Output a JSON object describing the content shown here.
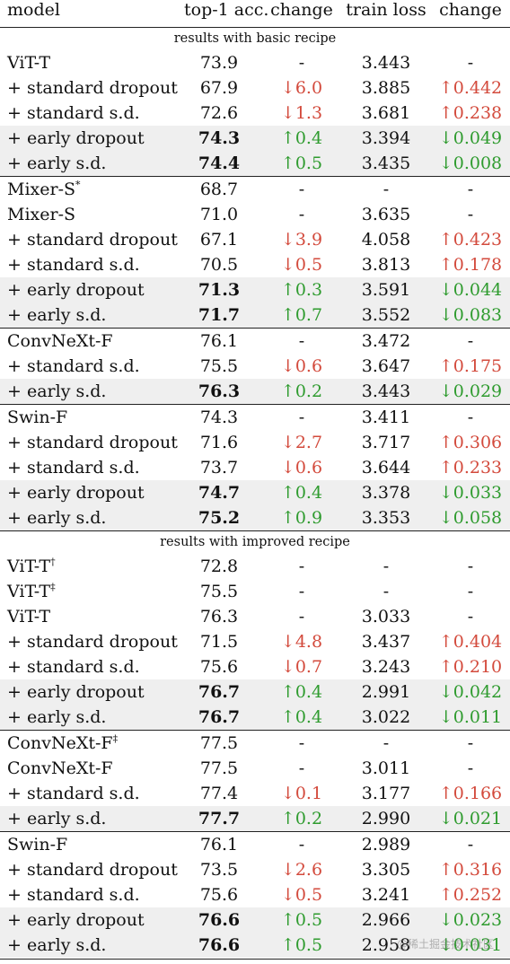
{
  "header": {
    "model": "model",
    "top1": "top-1 acc.",
    "change": "change",
    "train_loss": "train loss",
    "change2": "change"
  },
  "sections": [
    {
      "title": "results with basic recipe",
      "groups": [
        {
          "rows": [
            {
              "model": "ViT-T",
              "sup": "",
              "acc": "73.9",
              "bold": false,
              "dacc": "-",
              "dacc_dir": "",
              "loss": "3.443",
              "dloss": "-",
              "dloss_dir": "",
              "shaded": false
            },
            {
              "model": "+ standard dropout",
              "sup": "",
              "acc": "67.9",
              "bold": false,
              "dacc": "6.0",
              "dacc_dir": "down",
              "loss": "3.885",
              "dloss": "0.442",
              "dloss_dir": "up",
              "shaded": false
            },
            {
              "model": "+ standard s.d.",
              "sup": "",
              "acc": "72.6",
              "bold": false,
              "dacc": "1.3",
              "dacc_dir": "down",
              "loss": "3.681",
              "dloss": "0.238",
              "dloss_dir": "up",
              "shaded": false
            },
            {
              "model": "+ early dropout",
              "sup": "",
              "acc": "74.3",
              "bold": true,
              "dacc": "0.4",
              "dacc_dir": "up",
              "loss": "3.394",
              "dloss": "0.049",
              "dloss_dir": "down",
              "shaded": true
            },
            {
              "model": "+ early s.d.",
              "sup": "",
              "acc": "74.4",
              "bold": true,
              "dacc": "0.5",
              "dacc_dir": "up",
              "loss": "3.435",
              "dloss": "0.008",
              "dloss_dir": "down",
              "shaded": true
            }
          ]
        },
        {
          "rows": [
            {
              "model": "Mixer-S",
              "sup": "*",
              "acc": "68.7",
              "bold": false,
              "dacc": "-",
              "dacc_dir": "",
              "loss": "-",
              "dloss": "-",
              "dloss_dir": "",
              "shaded": false
            },
            {
              "model": "Mixer-S",
              "sup": "",
              "acc": "71.0",
              "bold": false,
              "dacc": "-",
              "dacc_dir": "",
              "loss": "3.635",
              "dloss": "-",
              "dloss_dir": "",
              "shaded": false
            },
            {
              "model": "+ standard dropout",
              "sup": "",
              "acc": "67.1",
              "bold": false,
              "dacc": "3.9",
              "dacc_dir": "down",
              "loss": "4.058",
              "dloss": "0.423",
              "dloss_dir": "up",
              "shaded": false
            },
            {
              "model": "+ standard s.d.",
              "sup": "",
              "acc": "70.5",
              "bold": false,
              "dacc": "0.5",
              "dacc_dir": "down",
              "loss": "3.813",
              "dloss": "0.178",
              "dloss_dir": "up",
              "shaded": false
            },
            {
              "model": "+ early dropout",
              "sup": "",
              "acc": "71.3",
              "bold": true,
              "dacc": "0.3",
              "dacc_dir": "up",
              "loss": "3.591",
              "dloss": "0.044",
              "dloss_dir": "down",
              "shaded": true
            },
            {
              "model": "+ early s.d.",
              "sup": "",
              "acc": "71.7",
              "bold": true,
              "dacc": "0.7",
              "dacc_dir": "up",
              "loss": "3.552",
              "dloss": "0.083",
              "dloss_dir": "down",
              "shaded": true
            }
          ]
        },
        {
          "rows": [
            {
              "model": "ConvNeXt-F",
              "sup": "",
              "acc": "76.1",
              "bold": false,
              "dacc": "-",
              "dacc_dir": "",
              "loss": "3.472",
              "dloss": "-",
              "dloss_dir": "",
              "shaded": false
            },
            {
              "model": "+ standard s.d.",
              "sup": "",
              "acc": "75.5",
              "bold": false,
              "dacc": "0.6",
              "dacc_dir": "down",
              "loss": "3.647",
              "dloss": "0.175",
              "dloss_dir": "up",
              "shaded": false
            },
            {
              "model": "+ early s.d.",
              "sup": "",
              "acc": "76.3",
              "bold": true,
              "dacc": "0.2",
              "dacc_dir": "up",
              "loss": "3.443",
              "dloss": "0.029",
              "dloss_dir": "down",
              "shaded": true
            }
          ]
        },
        {
          "rows": [
            {
              "model": "Swin-F",
              "sup": "",
              "acc": "74.3",
              "bold": false,
              "dacc": "-",
              "dacc_dir": "",
              "loss": "3.411",
              "dloss": "-",
              "dloss_dir": "",
              "shaded": false
            },
            {
              "model": "+ standard dropout",
              "sup": "",
              "acc": "71.6",
              "bold": false,
              "dacc": "2.7",
              "dacc_dir": "down",
              "loss": "3.717",
              "dloss": "0.306",
              "dloss_dir": "up",
              "shaded": false
            },
            {
              "model": "+ standard s.d.",
              "sup": "",
              "acc": "73.7",
              "bold": false,
              "dacc": "0.6",
              "dacc_dir": "down",
              "loss": "3.644",
              "dloss": "0.233",
              "dloss_dir": "up",
              "shaded": false
            },
            {
              "model": "+ early dropout",
              "sup": "",
              "acc": "74.7",
              "bold": true,
              "dacc": "0.4",
              "dacc_dir": "up",
              "loss": "3.378",
              "dloss": "0.033",
              "dloss_dir": "down",
              "shaded": true
            },
            {
              "model": "+ early s.d.",
              "sup": "",
              "acc": "75.2",
              "bold": true,
              "dacc": "0.9",
              "dacc_dir": "up",
              "loss": "3.353",
              "dloss": "0.058",
              "dloss_dir": "down",
              "shaded": true
            }
          ]
        }
      ]
    },
    {
      "title": "results with improved recipe",
      "groups": [
        {
          "rows": [
            {
              "model": "ViT-T",
              "sup": "†",
              "acc": "72.8",
              "bold": false,
              "dacc": "-",
              "dacc_dir": "",
              "loss": "-",
              "dloss": "-",
              "dloss_dir": "",
              "shaded": false
            },
            {
              "model": "ViT-T",
              "sup": "‡",
              "acc": "75.5",
              "bold": false,
              "dacc": "-",
              "dacc_dir": "",
              "loss": "-",
              "dloss": "-",
              "dloss_dir": "",
              "shaded": false
            },
            {
              "model": "ViT-T",
              "sup": "",
              "acc": "76.3",
              "bold": false,
              "dacc": "-",
              "dacc_dir": "",
              "loss": "3.033",
              "dloss": "-",
              "dloss_dir": "",
              "shaded": false
            },
            {
              "model": "+ standard dropout",
              "sup": "",
              "acc": "71.5",
              "bold": false,
              "dacc": "4.8",
              "dacc_dir": "down",
              "loss": "3.437",
              "dloss": "0.404",
              "dloss_dir": "up",
              "shaded": false
            },
            {
              "model": "+ standard s.d.",
              "sup": "",
              "acc": "75.6",
              "bold": false,
              "dacc": "0.7",
              "dacc_dir": "down",
              "loss": "3.243",
              "dloss": "0.210",
              "dloss_dir": "up",
              "shaded": false
            },
            {
              "model": "+ early dropout",
              "sup": "",
              "acc": "76.7",
              "bold": true,
              "dacc": "0.4",
              "dacc_dir": "up",
              "loss": "2.991",
              "dloss": "0.042",
              "dloss_dir": "down",
              "shaded": true
            },
            {
              "model": "+ early s.d.",
              "sup": "",
              "acc": "76.7",
              "bold": true,
              "dacc": "0.4",
              "dacc_dir": "up",
              "loss": "3.022",
              "dloss": "0.011",
              "dloss_dir": "down",
              "shaded": true
            }
          ]
        },
        {
          "rows": [
            {
              "model": "ConvNeXt-F",
              "sup": "‡",
              "acc": "77.5",
              "bold": false,
              "dacc": "-",
              "dacc_dir": "",
              "loss": "-",
              "dloss": "-",
              "dloss_dir": "",
              "shaded": false
            },
            {
              "model": "ConvNeXt-F",
              "sup": "",
              "acc": "77.5",
              "bold": false,
              "dacc": "-",
              "dacc_dir": "",
              "loss": "3.011",
              "dloss": "-",
              "dloss_dir": "",
              "shaded": false
            },
            {
              "model": "+ standard s.d.",
              "sup": "",
              "acc": "77.4",
              "bold": false,
              "dacc": "0.1",
              "dacc_dir": "down",
              "loss": "3.177",
              "dloss": "0.166",
              "dloss_dir": "up",
              "shaded": false
            },
            {
              "model": "+ early s.d.",
              "sup": "",
              "acc": "77.7",
              "bold": true,
              "dacc": "0.2",
              "dacc_dir": "up",
              "loss": "2.990",
              "dloss": "0.021",
              "dloss_dir": "down",
              "shaded": true
            }
          ]
        },
        {
          "rows": [
            {
              "model": "Swin-F",
              "sup": "",
              "acc": "76.1",
              "bold": false,
              "dacc": "-",
              "dacc_dir": "",
              "loss": "2.989",
              "dloss": "-",
              "dloss_dir": "",
              "shaded": false
            },
            {
              "model": "+ standard dropout",
              "sup": "",
              "acc": "73.5",
              "bold": false,
              "dacc": "2.6",
              "dacc_dir": "down",
              "loss": "3.305",
              "dloss": "0.316",
              "dloss_dir": "up",
              "shaded": false
            },
            {
              "model": "+ standard s.d.",
              "sup": "",
              "acc": "75.6",
              "bold": false,
              "dacc": "0.5",
              "dacc_dir": "down",
              "loss": "3.241",
              "dloss": "0.252",
              "dloss_dir": "up",
              "shaded": false
            },
            {
              "model": "+ early dropout",
              "sup": "",
              "acc": "76.6",
              "bold": true,
              "dacc": "0.5",
              "dacc_dir": "up",
              "loss": "2.966",
              "dloss": "0.023",
              "dloss_dir": "down",
              "shaded": true
            },
            {
              "model": "+ early s.d.",
              "sup": "",
              "acc": "76.6",
              "bold": true,
              "dacc": "0.5",
              "dacc_dir": "up",
              "loss": "2.958",
              "dloss": "0.031",
              "dloss_dir": "down",
              "shaded": true
            }
          ]
        }
      ]
    }
  ],
  "watermark": "@稀土掘金技术社区",
  "colors": {
    "increase": "#d34a3c",
    "decrease": "#2e9b2e",
    "shade": "#efefef"
  },
  "arrows": {
    "up": "↑",
    "down": "↓"
  }
}
